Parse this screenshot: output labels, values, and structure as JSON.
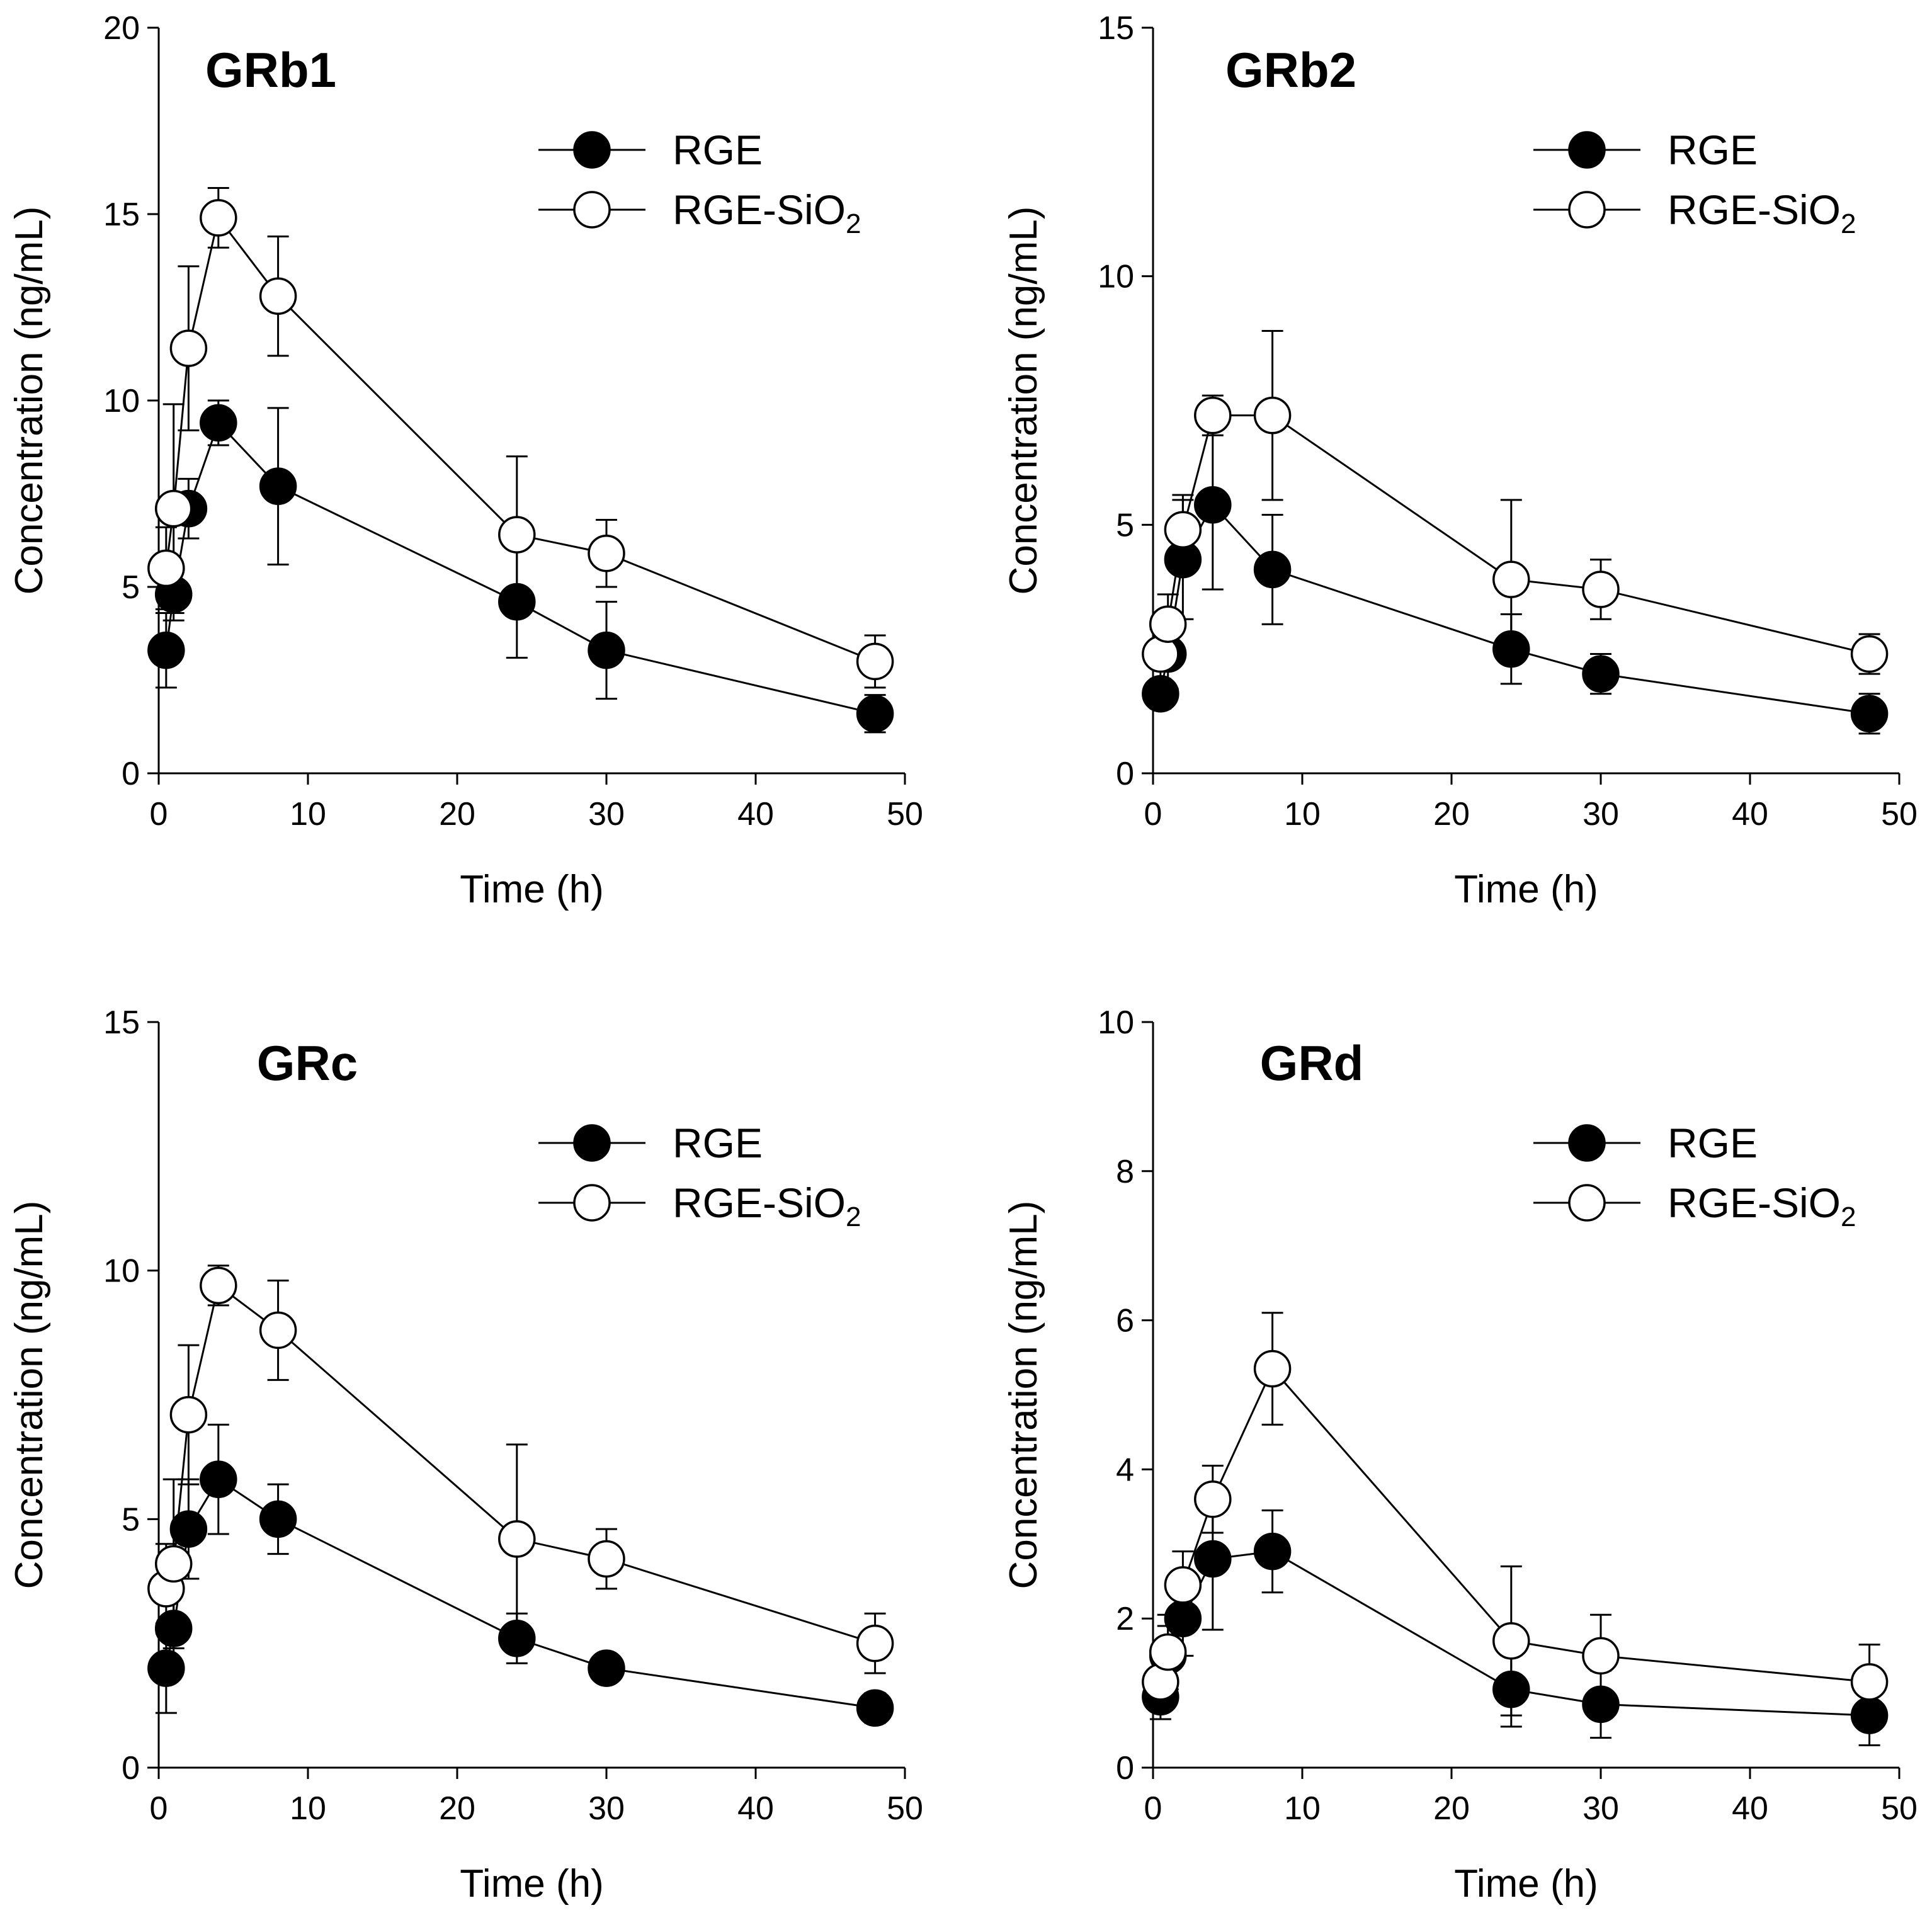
{
  "colors": {
    "line": "#000000",
    "filled_marker": "#000000",
    "open_marker": "#ffffff"
  },
  "chart_data": [
    {
      "type": "line",
      "title": "GRb1",
      "xlabel": "Time (h)",
      "ylabel": "Concentration (ng/mL)",
      "xlim": [
        0,
        50
      ],
      "ylim": [
        0,
        20
      ],
      "xticks": [
        0,
        10,
        20,
        30,
        40,
        50
      ],
      "yticks": [
        0,
        5,
        10,
        15,
        20
      ],
      "legend_position": "top-right",
      "series": [
        {
          "name": "RGE",
          "name_sub": "",
          "marker": "filled",
          "x": [
            0.5,
            1,
            2,
            4,
            8,
            24,
            30,
            48
          ],
          "y": [
            3.3,
            4.8,
            7.1,
            9.4,
            7.7,
            4.6,
            3.3,
            1.6
          ],
          "err": [
            1.0,
            0.7,
            0.8,
            0.6,
            2.1,
            1.5,
            1.3,
            0.5
          ]
        },
        {
          "name": "RGE-SiO",
          "name_sub": "2",
          "marker": "open",
          "x": [
            0.5,
            1,
            2,
            4,
            8,
            24,
            30,
            48
          ],
          "y": [
            5.5,
            7.1,
            11.4,
            14.9,
            12.8,
            6.4,
            5.9,
            3.0
          ],
          "err": [
            1.1,
            2.8,
            2.2,
            0.8,
            1.6,
            2.1,
            0.9,
            0.7
          ]
        }
      ]
    },
    {
      "type": "line",
      "title": "GRb2",
      "xlabel": "Time (h)",
      "ylabel": "Concentration (ng/mL)",
      "xlim": [
        0,
        50
      ],
      "ylim": [
        0,
        15
      ],
      "xticks": [
        0,
        10,
        20,
        30,
        40,
        50
      ],
      "yticks": [
        0,
        5,
        10,
        15
      ],
      "legend_position": "top-right",
      "series": [
        {
          "name": "RGE",
          "name_sub": "",
          "marker": "filled",
          "x": [
            0.5,
            1,
            2,
            4,
            8,
            24,
            30,
            48
          ],
          "y": [
            1.6,
            2.4,
            4.3,
            5.4,
            4.1,
            2.5,
            2.0,
            1.2
          ],
          "err": [
            0.3,
            0.7,
            1.2,
            1.7,
            1.1,
            0.7,
            0.4,
            0.4
          ]
        },
        {
          "name": "RGE-SiO",
          "name_sub": "2",
          "marker": "open",
          "x": [
            0.5,
            1,
            2,
            4,
            8,
            24,
            30,
            48
          ],
          "y": [
            2.4,
            3.0,
            4.9,
            7.2,
            7.2,
            3.9,
            3.7,
            2.4
          ],
          "err": [
            0.5,
            0.6,
            0.7,
            0.4,
            1.7,
            1.6,
            0.6,
            0.4
          ]
        }
      ]
    },
    {
      "type": "line",
      "title": "GRc",
      "xlabel": "Time (h)",
      "ylabel": "Concentration (ng/mL)",
      "xlim": [
        0,
        50
      ],
      "ylim": [
        0,
        15
      ],
      "xticks": [
        0,
        10,
        20,
        30,
        40,
        50
      ],
      "yticks": [
        0,
        5,
        10,
        15
      ],
      "legend_position": "top-right",
      "series": [
        {
          "name": "RGE",
          "name_sub": "",
          "marker": "filled",
          "x": [
            0.5,
            1,
            2,
            4,
            8,
            24,
            30,
            48
          ],
          "y": [
            2.0,
            2.8,
            4.8,
            5.8,
            5.0,
            2.6,
            2.0,
            1.2
          ],
          "err": [
            0.9,
            0.8,
            1.0,
            1.1,
            0.7,
            0.5,
            0.2,
            0.3
          ]
        },
        {
          "name": "RGE-SiO",
          "name_sub": "2",
          "marker": "open",
          "x": [
            0.5,
            1,
            2,
            4,
            8,
            24,
            30,
            48
          ],
          "y": [
            3.6,
            4.1,
            7.1,
            9.7,
            8.8,
            4.6,
            4.2,
            2.5
          ],
          "err": [
            0.9,
            1.7,
            1.4,
            0.4,
            1.0,
            1.9,
            0.6,
            0.6
          ]
        }
      ]
    },
    {
      "type": "line",
      "title": "GRd",
      "xlabel": "Time (h)",
      "ylabel": "Concentration (ng/mL)",
      "xlim": [
        0,
        50
      ],
      "ylim": [
        0,
        10
      ],
      "xticks": [
        0,
        10,
        20,
        30,
        40,
        50
      ],
      "yticks": [
        0,
        2,
        4,
        6,
        8,
        10
      ],
      "legend_position": "top-right",
      "series": [
        {
          "name": "RGE",
          "name_sub": "",
          "marker": "filled",
          "x": [
            0.5,
            1,
            2,
            4,
            8,
            24,
            30,
            48
          ],
          "y": [
            0.95,
            1.5,
            2.0,
            2.8,
            2.9,
            1.05,
            0.85,
            0.7
          ],
          "err": [
            0.3,
            0.4,
            0.5,
            0.95,
            0.55,
            0.5,
            0.45,
            0.4
          ]
        },
        {
          "name": "RGE-SiO",
          "name_sub": "2",
          "marker": "open",
          "x": [
            0.5,
            1,
            2,
            4,
            8,
            24,
            30,
            48
          ],
          "y": [
            1.15,
            1.55,
            2.45,
            3.6,
            5.35,
            1.7,
            1.5,
            1.15
          ],
          "err": [
            0.3,
            0.5,
            0.45,
            0.45,
            0.75,
            1.0,
            0.55,
            0.5
          ]
        }
      ]
    }
  ]
}
